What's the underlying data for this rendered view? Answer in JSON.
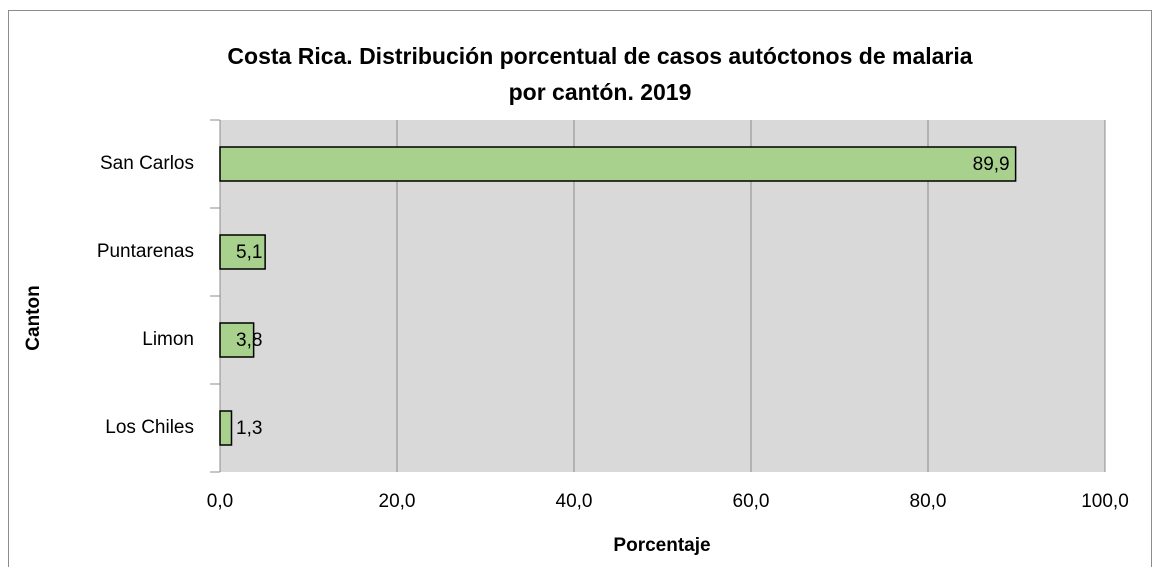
{
  "chart_data": {
    "type": "barh",
    "title": [
      "Costa Rica. Distribución porcentual de casos autóctonos de malaria",
      "por cantón. 2019"
    ],
    "x_label": "Porcentaje",
    "y_label": "Canton",
    "categories": [
      "San Carlos",
      "Puntarenas",
      "Limon",
      "Los Chiles"
    ],
    "values": [
      89.9,
      5.1,
      3.8,
      1.3
    ],
    "value_labels": [
      "89,9",
      "5,1",
      "3,8",
      "1,3"
    ],
    "color": "#a9d18e",
    "xlim": [
      0,
      100
    ],
    "xticks": [
      {
        "value": 0,
        "label": "0,0"
      },
      {
        "value": 20,
        "label": "20,0"
      },
      {
        "value": 40,
        "label": "40,0"
      },
      {
        "value": 60,
        "label": "60,0"
      },
      {
        "value": 80,
        "label": "80,0"
      },
      {
        "value": 100,
        "label": "100,0"
      }
    ],
    "grid": true
  }
}
